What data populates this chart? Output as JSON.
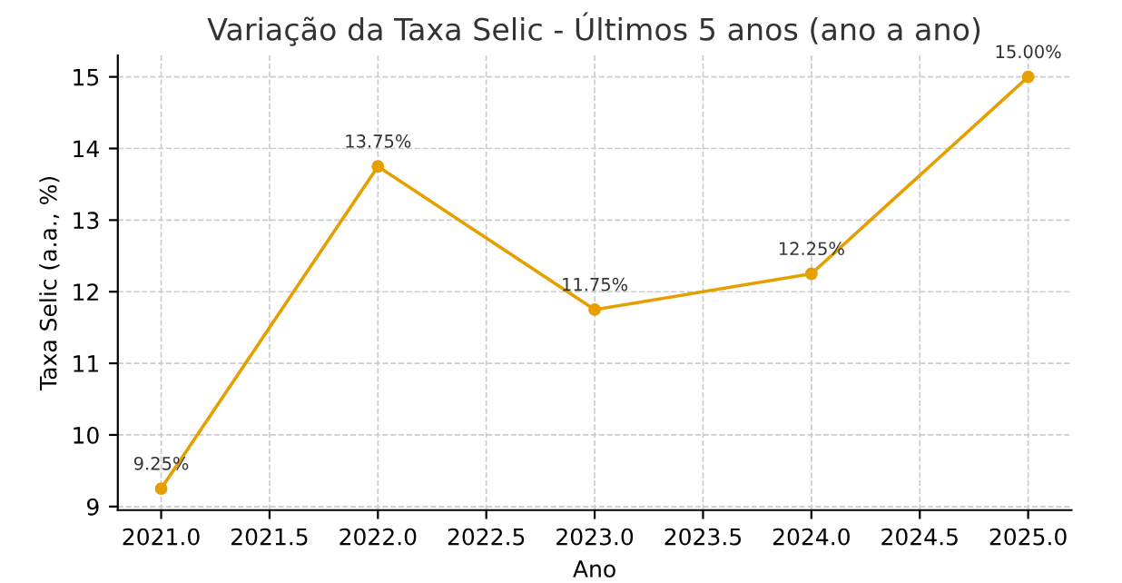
{
  "chart_data": {
    "type": "line",
    "title": "Variação da Taxa Selic - Últimos 5 anos (ano a ano)",
    "xlabel": "Ano",
    "ylabel": "Taxa Selic (a.a., %)",
    "x": [
      2021,
      2022,
      2023,
      2024,
      2025
    ],
    "series": [
      {
        "color": "#e69f00",
        "values": [
          9.25,
          13.75,
          11.75,
          12.25,
          15.0
        ],
        "value_labels": [
          "9.25%",
          "13.75%",
          "11.75%",
          "12.25%",
          "15.00%"
        ]
      }
    ],
    "xlim": [
      2020.8,
      2025.2
    ],
    "ylim": [
      8.95,
      15.3
    ],
    "xticks": [
      {
        "value": 2021,
        "label": "2021.0"
      },
      {
        "value": 2021.5,
        "label": "2021.5"
      },
      {
        "value": 2022,
        "label": "2022.0"
      },
      {
        "value": 2022.5,
        "label": "2022.5"
      },
      {
        "value": 2023,
        "label": "2023.0"
      },
      {
        "value": 2023.5,
        "label": "2023.5"
      },
      {
        "value": 2024,
        "label": "2024.0"
      },
      {
        "value": 2024.5,
        "label": "2024.5"
      },
      {
        "value": 2025,
        "label": "2025.0"
      }
    ],
    "yticks": [
      9,
      10,
      11,
      12,
      13,
      14,
      15
    ],
    "grid": true,
    "marker": "circle",
    "line_style": "solid"
  }
}
